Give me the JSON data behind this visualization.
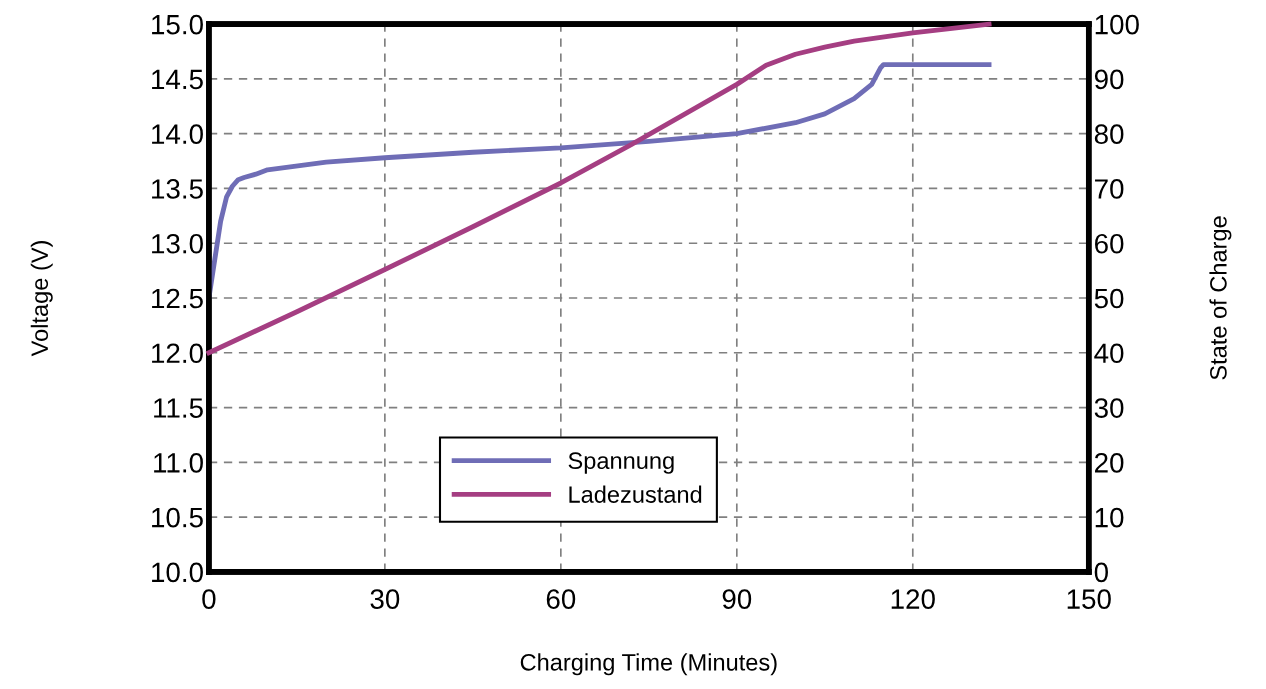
{
  "chart_data": {
    "type": "line",
    "xlabel": "Charging Time (Minutes)",
    "ylabel": "Voltage (V)",
    "y2label": "State of Charge",
    "xlim": [
      0,
      150
    ],
    "xticks": [
      0,
      30,
      60,
      90,
      120,
      150
    ],
    "ylim": [
      10.0,
      15.0
    ],
    "yticks": [
      {
        "value": 10.0,
        "label": "10.0"
      },
      {
        "value": 10.5,
        "label": "10.5"
      },
      {
        "value": 11.0,
        "label": "11.0"
      },
      {
        "value": 11.5,
        "label": "11.5"
      },
      {
        "value": 12.0,
        "label": "12.0"
      },
      {
        "value": 12.5,
        "label": "12.5"
      },
      {
        "value": 13.0,
        "label": "13.0"
      },
      {
        "value": 13.5,
        "label": "13.5"
      },
      {
        "value": 14.0,
        "label": "14.0"
      },
      {
        "value": 14.5,
        "label": "14.5"
      },
      {
        "value": 15.0,
        "label": "15.0"
      }
    ],
    "y2lim": [
      0,
      100
    ],
    "y2ticks": [
      0,
      10,
      20,
      30,
      40,
      50,
      60,
      70,
      80,
      90,
      100
    ],
    "grid": true,
    "legend": "bottom",
    "line_style": "solid",
    "marker": "none",
    "series": [
      {
        "name": "Spannung",
        "color": "#6f6db6",
        "x": [
          0,
          1,
          2,
          3,
          4,
          5,
          6,
          8,
          10,
          20,
          30,
          45,
          60,
          75,
          90,
          100,
          105,
          110,
          113,
          114.5,
          115,
          133
        ],
        "values": [
          12.5,
          12.85,
          13.2,
          13.42,
          13.52,
          13.58,
          13.6,
          13.63,
          13.67,
          13.74,
          13.78,
          13.83,
          13.87,
          13.93,
          14.0,
          14.1,
          14.18,
          14.32,
          14.45,
          14.6,
          14.63,
          14.63
        ]
      },
      {
        "name": "Ladezustand",
        "color": "#a53e82",
        "axis": "y2",
        "x": [
          0,
          15,
          30,
          45,
          60,
          72,
          90,
          95,
          100,
          105,
          110,
          120,
          133
        ],
        "values": [
          40,
          47.5,
          55.2,
          63,
          71,
          78,
          89,
          92.5,
          94.5,
          95.8,
          96.9,
          98.4,
          100
        ]
      }
    ]
  }
}
